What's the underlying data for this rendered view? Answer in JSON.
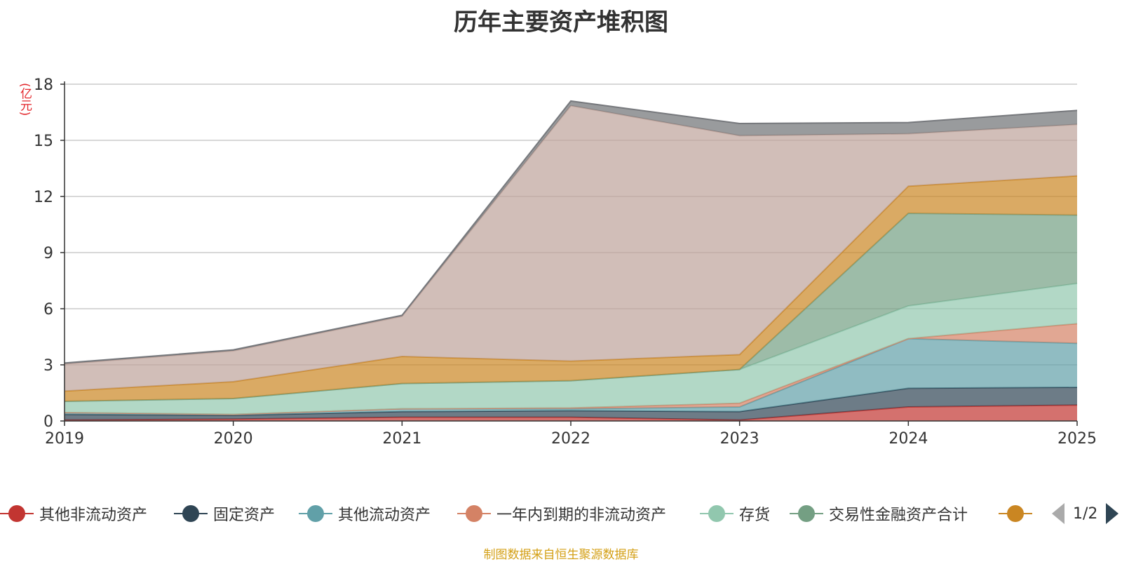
{
  "chart_data": {
    "type": "area",
    "stacked": true,
    "title": "历年主要资产堆积图",
    "unit": "(亿元)",
    "x": [
      "2019",
      "2020",
      "2021",
      "2022",
      "2023",
      "2024",
      "2025"
    ],
    "ylim": [
      0,
      18
    ],
    "yticks": [
      0,
      3,
      6,
      9,
      12,
      15,
      18
    ],
    "grid": true,
    "legend_position": "bottom",
    "series": [
      {
        "name": "其他非流动资产",
        "color": "#c23531",
        "values": [
          0.05,
          0.1,
          0.2,
          0.2,
          0.05,
          0.75,
          0.85
        ]
      },
      {
        "name": "固定资产",
        "color": "#2f4554",
        "values": [
          0.3,
          0.2,
          0.3,
          0.35,
          0.45,
          1.0,
          0.95
        ]
      },
      {
        "name": "其他流动资产",
        "color": "#61a0a8",
        "values": [
          0.1,
          0.05,
          0.15,
          0.1,
          0.25,
          2.65,
          2.35
        ]
      },
      {
        "name": "一年内到期的非流动资产",
        "color": "#d48265",
        "values": [
          0.0,
          0.0,
          0.0,
          0.05,
          0.2,
          0.0,
          1.05
        ]
      },
      {
        "name": "存货",
        "color": "#91c7ae",
        "values": [
          0.6,
          0.85,
          1.35,
          1.45,
          1.8,
          1.75,
          2.15
        ]
      },
      {
        "name": "交易性金融资产合计",
        "color": "#749f83",
        "values": [
          0.0,
          0.0,
          0.0,
          0.0,
          0.0,
          4.95,
          3.65
        ]
      },
      {
        "name": "",
        "color": "#ca8622",
        "values": [
          0.55,
          0.9,
          1.45,
          1.05,
          0.8,
          1.45,
          2.1
        ]
      },
      {
        "name": "",
        "color": "#bda29a",
        "values": [
          1.45,
          1.65,
          2.15,
          13.65,
          11.7,
          2.8,
          2.75
        ]
      },
      {
        "name": "",
        "color": "#6e7074",
        "values": [
          0.05,
          0.05,
          0.05,
          0.25,
          0.65,
          0.6,
          0.75
        ]
      }
    ]
  },
  "legend": {
    "items": [
      {
        "label": "其他非流动资产",
        "color": "#c23531"
      },
      {
        "label": "固定资产",
        "color": "#2f4554"
      },
      {
        "label": "其他流动资产",
        "color": "#61a0a8"
      },
      {
        "label": "一年内到期的非流动资产",
        "color": "#d48265"
      },
      {
        "label": "存货",
        "color": "#91c7ae"
      },
      {
        "label": "交易性金融资产合计",
        "color": "#749f83"
      },
      {
        "label": "",
        "color": "#ca8622"
      }
    ],
    "page_text": "1/2"
  },
  "source_text": "制图数据来自恒生聚源数据库"
}
